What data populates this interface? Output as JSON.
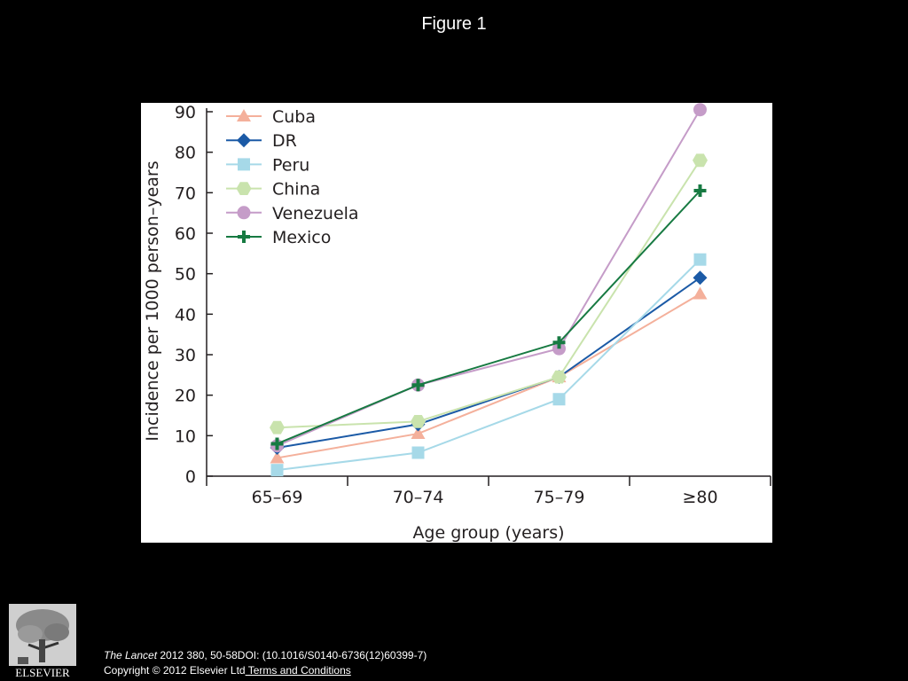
{
  "slide": {
    "title": "Figure 1"
  },
  "footer": {
    "journal": "The Lancet",
    "citation_rest": " 2012 380, 50-58DOI: (10.1016/S0140-6736(12)60399-7)",
    "copyright": "Copyright © 2012 Elsevier Ltd",
    "terms_link": " Terms and Conditions",
    "publisher_logo_text": "ELSEVIER"
  },
  "chart_data": {
    "type": "line",
    "title": "",
    "xlabel": "Age group (years)",
    "ylabel": "Incidence per 1000 person–years",
    "categories": [
      "65–69",
      "70–74",
      "75–79",
      "≥80"
    ],
    "ylim": [
      0,
      90
    ],
    "yticks": [
      0,
      10,
      20,
      30,
      40,
      50,
      60,
      70,
      80,
      90
    ],
    "grid": false,
    "legend_position": "top-left",
    "series": [
      {
        "name": "Cuba",
        "color": "#f4b09b",
        "marker": "triangle",
        "values": [
          4.5,
          10.5,
          24.5,
          45
        ]
      },
      {
        "name": "DR",
        "color": "#1b5aa6",
        "marker": "diamond",
        "values": [
          7,
          12.8,
          24.5,
          49
        ]
      },
      {
        "name": "Peru",
        "color": "#a6d9e8",
        "marker": "square",
        "values": [
          1.5,
          5.8,
          19,
          53.5
        ]
      },
      {
        "name": "China",
        "color": "#c9e3ad",
        "marker": "hexagon",
        "values": [
          12,
          13.5,
          24.5,
          78
        ]
      },
      {
        "name": "Venezuela",
        "color": "#c59cc8",
        "marker": "circle",
        "values": [
          7.5,
          22.5,
          31.5,
          90.5
        ]
      },
      {
        "name": "Mexico",
        "color": "#177a42",
        "marker": "plus",
        "values": [
          8,
          22.5,
          33,
          70.5
        ]
      }
    ]
  }
}
